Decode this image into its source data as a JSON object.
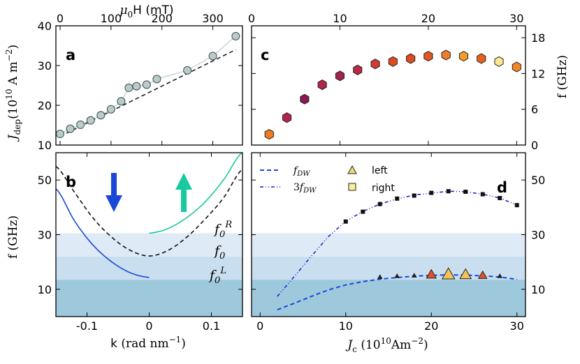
{
  "chart_data": [
    {
      "panel": "a",
      "type": "scatter",
      "label": "a",
      "xlabel": "μ0H (mT)",
      "xlabel_main": "μ",
      "xlabel_sub": "0",
      "xlabel_rest": "H (mT)",
      "ylabel": "J_dep (10^10 A m^-2)",
      "ylabel_main": "J",
      "ylabel_sub": "dep",
      "ylabel_rest": "(10",
      "ylabel_exp": "10",
      "ylabel_unit": "A m",
      "ylabel_unit_exp": "−2",
      "ylabel_close": ")",
      "xlim": [
        0,
        350
      ],
      "ylim": [
        10,
        40
      ],
      "xticks": [
        "0",
        "100",
        "200",
        "300"
      ],
      "xtick_values": [
        0,
        100,
        200,
        300
      ],
      "yticks": [
        "10",
        "20",
        "30",
        "40"
      ],
      "ytick_values": [
        10,
        20,
        30,
        40
      ],
      "points": {
        "x": [
          0,
          20,
          40,
          60,
          80,
          100,
          120,
          135,
          150,
          170,
          190,
          250,
          300,
          345
        ],
        "y": [
          12.8,
          14.1,
          15.1,
          16.2,
          17.5,
          19.0,
          21.0,
          24.4,
          24.8,
          25.2,
          26.6,
          28.8,
          32.4,
          37.4
        ]
      },
      "fit_line": {
        "x": [
          0,
          345
        ],
        "y": [
          12.2,
          34.0
        ]
      },
      "colors": {
        "marker": "#b9cbcb",
        "edge": "#3a4a4a",
        "line": "#b0c4c4",
        "fit": "#222222"
      }
    },
    {
      "panel": "b",
      "type": "line",
      "label": "b",
      "xlabel": "k (rad nm^-1)",
      "xlabel_main": "k",
      "xlabel_rest": "(rad nm",
      "xlabel_exp": "−1",
      "xlabel_close": ")",
      "ylabel": "f (GHz)",
      "xlim": [
        -0.15,
        0.15
      ],
      "ylim": [
        0,
        60
      ],
      "xticks": [
        "-0.1",
        "0",
        "0.1"
      ],
      "xtick_values": [
        -0.1,
        0,
        0.1
      ],
      "yticks": [
        "10",
        "30",
        "50"
      ],
      "ytick_values": [
        10,
        30,
        50
      ],
      "bands": [
        {
          "from": 0,
          "to": 13.5,
          "color": "#9ec9dd"
        },
        {
          "from": 13.5,
          "to": 22,
          "color": "#c9dff0"
        },
        {
          "from": 22,
          "to": 30.5,
          "color": "#deeaf6"
        }
      ],
      "series": [
        {
          "name": "f0^L",
          "color": "#1a47d8",
          "style": "solid",
          "x": [
            -0.15,
            -0.12,
            -0.09,
            -0.06,
            -0.03,
            0
          ],
          "y": [
            46.8,
            35.0,
            26.1,
            20.0,
            16.0,
            14.3
          ]
        },
        {
          "name": "f0",
          "color": "#111111",
          "style": "dashed",
          "x": [
            -0.15,
            -0.12,
            -0.09,
            -0.06,
            -0.03,
            0,
            0.03,
            0.06,
            0.09,
            0.12,
            0.15
          ],
          "y": [
            55.0,
            45.5,
            36.0,
            29.0,
            24.2,
            22.2,
            24.2,
            29.0,
            35.7,
            43.6,
            54.0
          ]
        },
        {
          "name": "f0^R",
          "color": "#19c9a0",
          "style": "solid",
          "x": [
            0,
            0.03,
            0.06,
            0.09,
            0.12,
            0.15
          ],
          "y": [
            30.5,
            32.2,
            36.2,
            42.0,
            50.2,
            60.2
          ]
        }
      ],
      "curve_labels": [
        {
          "main": "f",
          "sub": "0",
          "sup": "R"
        },
        {
          "main": "f",
          "sub": "0",
          "sup": ""
        },
        {
          "main": "f",
          "sub": "0",
          "sup": "L"
        }
      ],
      "arrows": [
        {
          "direction": "down",
          "color": "#1a47d8"
        },
        {
          "direction": "up",
          "color": "#19c9a0"
        }
      ]
    },
    {
      "panel": "c",
      "type": "scatter",
      "label": "c",
      "ylabel": "f (GHz)",
      "xlim": [
        0,
        31
      ],
      "ylim": [
        0,
        20
      ],
      "xticks": [
        "0",
        "10",
        "20",
        "30"
      ],
      "xtick_values": [
        0,
        10,
        20,
        30
      ],
      "yticks": [
        "0",
        "6",
        "12",
        "18"
      ],
      "ytick_values": [
        0,
        6,
        12,
        18
      ],
      "points": {
        "x": [
          2,
          4,
          6,
          8,
          10,
          12,
          14,
          16,
          18,
          20,
          22,
          24,
          26,
          28,
          30
        ],
        "y": [
          1.8,
          4.6,
          7.7,
          10.1,
          11.6,
          12.6,
          13.6,
          14.0,
          14.5,
          14.9,
          15.1,
          14.9,
          14.5,
          14.0,
          13.1
        ],
        "colors": [
          "#f07a20",
          "#b4234c",
          "#8c1854",
          "#b0254a",
          "#a42250",
          "#b52a44",
          "#d13a30",
          "#e04a22",
          "#e0481f",
          "#e4561e",
          "#ef7d27",
          "#f59b2c",
          "#e8601f",
          "#fae892",
          "#f58625"
        ]
      }
    },
    {
      "panel": "d",
      "type": "line",
      "label": "d",
      "xlabel": "J_c (10^10 A m^-2)",
      "xlabel_main": "J",
      "xlabel_sub": "c",
      "xlabel_rest": "(10",
      "xlabel_exp": "10",
      "xlabel_unit": "Am",
      "xlabel_unit_exp": "−2",
      "xlabel_close": ")",
      "xlim": [
        -1,
        31
      ],
      "ylim": [
        0,
        60
      ],
      "xticks": [
        "0",
        "10",
        "20",
        "30"
      ],
      "xtick_values": [
        0,
        10,
        20,
        30
      ],
      "yticks": [
        "10",
        "30",
        "50"
      ],
      "ytick_values": [
        10,
        30,
        50
      ],
      "bands": [
        {
          "from": 0,
          "to": 13.5,
          "color": "#9ec9dd"
        },
        {
          "from": 13.5,
          "to": 22,
          "color": "#c9dff0"
        },
        {
          "from": 22,
          "to": 30.5,
          "color": "#deeaf6"
        }
      ],
      "legend": [
        {
          "label_main": "f",
          "label_sub": "DW",
          "label_prefix": "",
          "style": "dashed",
          "color": "#1a47d8"
        },
        {
          "label_main": "f",
          "label_sub": "DW",
          "label_prefix": "3",
          "style": "dashdot",
          "color": "#1a1acc"
        },
        {
          "label": "left",
          "marker": "triangle",
          "color": "#e8e070"
        },
        {
          "label": "right",
          "marker": "square",
          "color": "#f5f09a"
        }
      ],
      "series": [
        {
          "name": "f_DW",
          "color": "#1a47d8",
          "style": "dashed",
          "x": [
            2,
            4,
            6,
            8,
            10,
            12,
            14,
            16,
            18,
            20,
            22,
            24,
            26,
            28,
            30
          ],
          "y": [
            2.5,
            4.9,
            7.4,
            9.8,
            11.6,
            12.8,
            13.7,
            14.3,
            14.8,
            15.1,
            15.3,
            15.2,
            14.9,
            14.5,
            13.6
          ]
        },
        {
          "name": "3f_DW",
          "color": "#1a1acc",
          "style": "dashdot",
          "x": [
            2,
            4,
            6,
            8,
            10,
            12,
            14,
            16,
            18,
            20,
            22,
            24,
            26,
            28,
            30
          ],
          "y": [
            7.4,
            14.7,
            22.2,
            29.4,
            34.9,
            38.5,
            41.2,
            43.1,
            44.5,
            45.2,
            45.9,
            45.7,
            44.8,
            43.4,
            40.8
          ]
        }
      ],
      "markers_square": {
        "x": [
          10,
          12,
          14,
          16,
          18,
          20,
          22,
          24,
          26,
          28,
          30
        ],
        "y": [
          34.8,
          38.4,
          41.2,
          43.2,
          44.3,
          45.3,
          45.9,
          45.7,
          44.8,
          43.4,
          40.8
        ]
      },
      "markers_triangle": {
        "x": [
          14,
          16,
          18,
          20,
          22,
          24,
          26,
          28
        ],
        "y": [
          14.5,
          14.8,
          15.0,
          15.4,
          15.5,
          15.4,
          15.1,
          14.8
        ],
        "sizes": [
          3,
          3,
          3,
          7,
          9,
          8,
          6,
          3
        ],
        "colors": [
          "#222222",
          "#222222",
          "#222222",
          "#e8502a",
          "#f4c25a",
          "#f6c255",
          "#e8502a",
          "#222222"
        ]
      }
    }
  ]
}
